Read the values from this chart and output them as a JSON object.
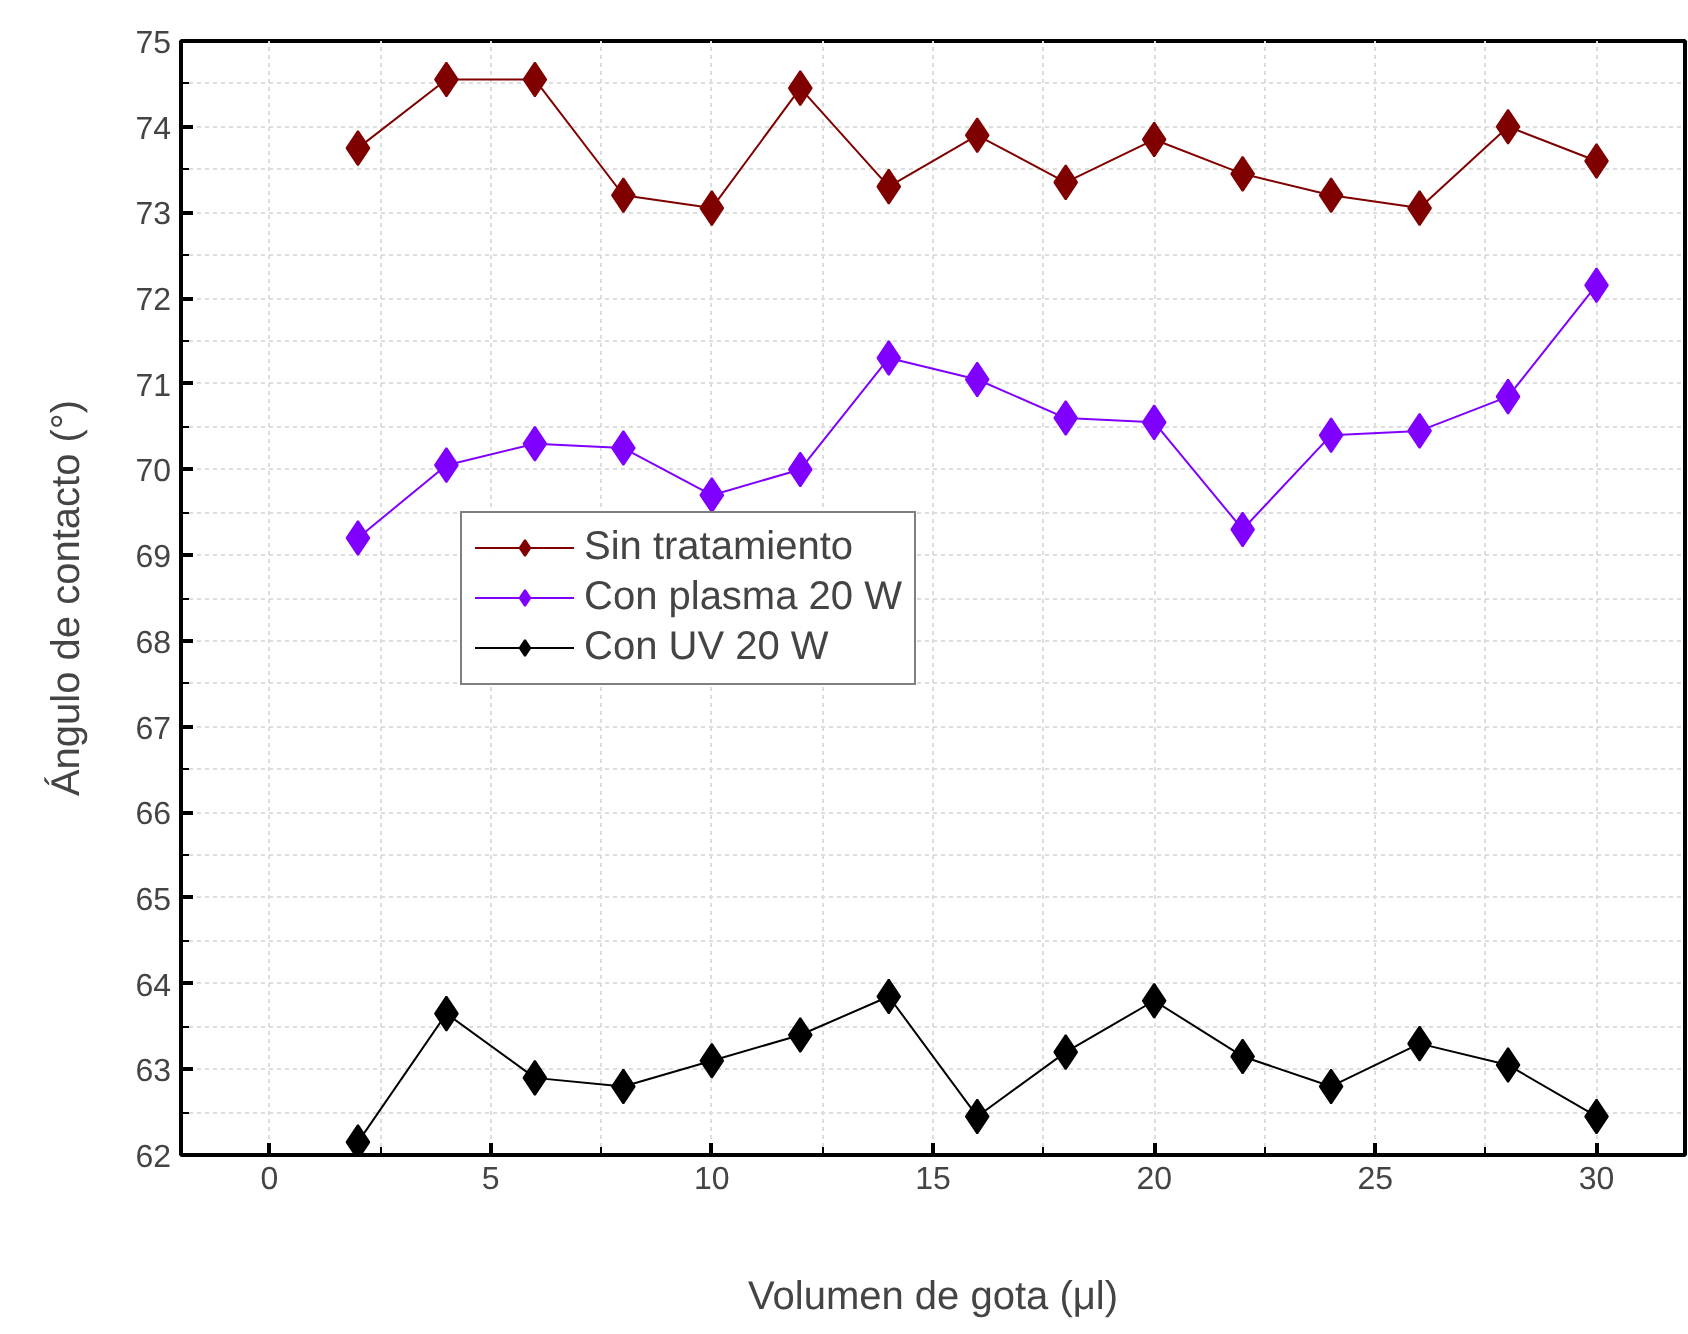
{
  "chart_data": {
    "type": "line",
    "xlabel": "Volumen de gota (μl)",
    "ylabel": "Ángulo de contacto (°)",
    "x": [
      2,
      4,
      6,
      8,
      10,
      12,
      14,
      16,
      18,
      20,
      22,
      24,
      26,
      28,
      30
    ],
    "xlim": [
      -2,
      32
    ],
    "xticks": [
      0,
      5,
      10,
      15,
      20,
      25,
      30
    ],
    "ylim": [
      62,
      75
    ],
    "yticks": [
      62,
      63,
      64,
      65,
      66,
      67,
      68,
      69,
      70,
      71,
      72,
      73,
      74,
      75
    ],
    "grid": true,
    "legend": "left",
    "marker": "diamond",
    "line_style": "solid",
    "series": [
      {
        "name": "Sin tratamiento",
        "color": "#800000",
        "values": [
          73.75,
          74.55,
          74.55,
          73.2,
          73.05,
          74.45,
          73.3,
          73.9,
          73.35,
          73.85,
          73.45,
          73.2,
          73.05,
          74.0,
          73.6
        ]
      },
      {
        "name": "Con plasma 20 W",
        "color": "#8000ff",
        "values": [
          69.2,
          70.05,
          70.3,
          70.25,
          69.7,
          70.0,
          71.3,
          71.05,
          70.6,
          70.55,
          69.3,
          70.4,
          70.45,
          70.85,
          72.15
        ]
      },
      {
        "name": "Con UV 20 W",
        "color": "#000000",
        "values": [
          62.15,
          63.65,
          62.9,
          62.8,
          63.1,
          63.4,
          63.85,
          62.45,
          63.2,
          63.8,
          63.15,
          62.8,
          63.3,
          63.05,
          62.45
        ]
      }
    ]
  }
}
